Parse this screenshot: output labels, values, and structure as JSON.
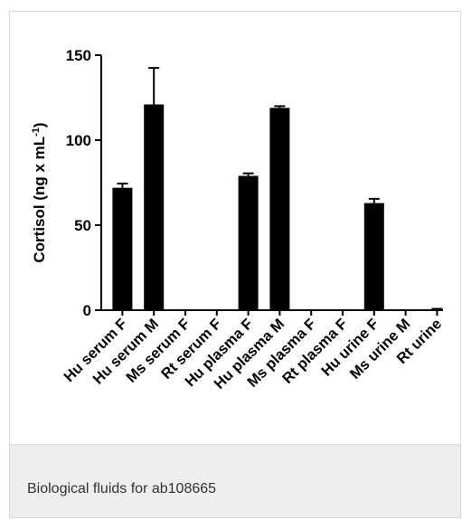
{
  "caption": "Biological fluids for ab108665",
  "chart_data": {
    "type": "bar",
    "title": "",
    "xlabel": "",
    "ylabel": "Cortisol (ng x mL",
    "ylabel_superscript": "-1",
    "ylabel_suffix": ")",
    "ylim": [
      0,
      150
    ],
    "yticks": [
      0,
      50,
      100,
      150
    ],
    "categories": [
      "Hu serum F",
      "Hu serum M",
      "Ms serum F",
      "Rt serum F",
      "Hu plasma F",
      "Hu plasma M",
      "Ms plasma F",
      "Rt plasma F",
      "Hu urine F",
      "Ms urine M",
      "Rt urine"
    ],
    "values": [
      72,
      121,
      0,
      0,
      79,
      119,
      0,
      0,
      63,
      0,
      0
    ],
    "errors": [
      2.5,
      21.5,
      0,
      0,
      1.5,
      1,
      0,
      0,
      2.5,
      0,
      0.8
    ],
    "bar_color": "#000000",
    "grid": false,
    "legend": "none"
  }
}
